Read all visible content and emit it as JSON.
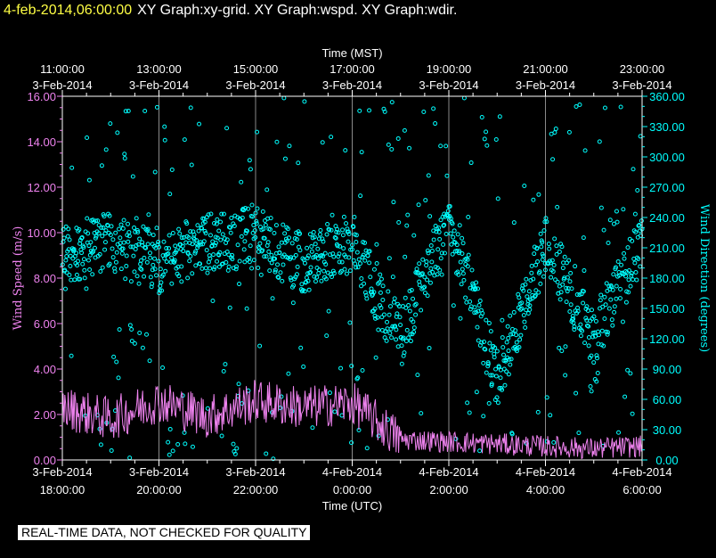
{
  "header": {
    "timestamp": "4-feb-2014,06:00:00",
    "title": "XY Graph:xy-grid.  XY Graph:wspd.  XY Graph:wdir."
  },
  "footer": {
    "notice": "REAL-TIME DATA, NOT CHECKED FOR QUALITY"
  },
  "colors": {
    "speed": "#ee82ee",
    "direction": "#00ffff",
    "axes": "#ffffff",
    "background": "#000000"
  },
  "chart_data": {
    "type": "scatter",
    "x_top_label": "Time (MST)",
    "x_bottom_label": "Time (UTC)",
    "x_ticks_bottom": [
      {
        "l1": "3-Feb-2014",
        "l2": "18:00:00"
      },
      {
        "l1": "3-Feb-2014",
        "l2": "20:00:00"
      },
      {
        "l1": "3-Feb-2014",
        "l2": "22:00:00"
      },
      {
        "l1": "4-Feb-2014",
        "l2": "0:00:00"
      },
      {
        "l1": "4-Feb-2014",
        "l2": "2:00:00"
      },
      {
        "l1": "4-Feb-2014",
        "l2": "4:00:00"
      },
      {
        "l1": "4-Feb-2014",
        "l2": "6:00:00"
      }
    ],
    "x_ticks_top": [
      {
        "l1": "11:00:00",
        "l2": "3-Feb-2014"
      },
      {
        "l1": "13:00:00",
        "l2": "3-Feb-2014"
      },
      {
        "l1": "15:00:00",
        "l2": "3-Feb-2014"
      },
      {
        "l1": "17:00:00",
        "l2": "3-Feb-2014"
      },
      {
        "l1": "19:00:00",
        "l2": "3-Feb-2014"
      },
      {
        "l1": "21:00:00",
        "l2": "3-Feb-2014"
      },
      {
        "l1": "23:00:00",
        "l2": "3-Feb-2014"
      }
    ],
    "left_axis": {
      "label": "Wind Speed (m/s)",
      "range": [
        0,
        16
      ],
      "ticks": [
        "0.00",
        "2.00",
        "4.00",
        "6.00",
        "8.00",
        "10.00",
        "12.00",
        "14.00",
        "16.00"
      ]
    },
    "right_axis": {
      "label": "Wind Direction (degrees)",
      "range": [
        0,
        360
      ],
      "ticks": [
        "0.00",
        "30.00",
        "60.00",
        "90.00",
        "120.00",
        "150.00",
        "180.00",
        "210.00",
        "240.00",
        "270.00",
        "300.00",
        "330.00",
        "360.00"
      ]
    },
    "x_range_hours_utc": [
      18,
      30
    ],
    "series": [
      {
        "name": "wspd",
        "style": "line",
        "x_hours_utc": [
          18,
          19,
          20,
          21,
          22,
          23,
          24,
          25,
          26,
          27,
          28,
          29,
          30
        ],
        "values": [
          2.3,
          1.8,
          2.6,
          1.9,
          2.6,
          2.3,
          2.5,
          0.9,
          0.8,
          0.7,
          0.6,
          0.5,
          0.6
        ]
      },
      {
        "name": "wdir",
        "style": "points",
        "x_hours_utc": [
          18,
          19,
          20,
          21,
          22,
          23,
          24,
          25,
          26,
          27,
          28,
          29,
          30
        ],
        "values": [
          205,
          215,
          195,
          215,
          220,
          195,
          215,
          120,
          240,
          80,
          215,
          120,
          215
        ]
      }
    ]
  }
}
